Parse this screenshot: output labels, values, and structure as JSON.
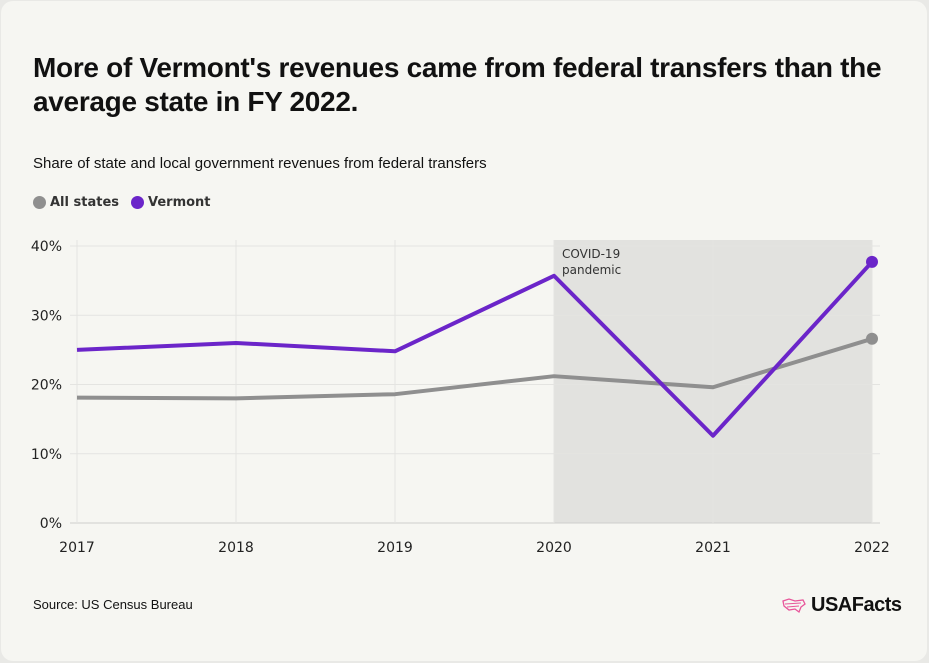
{
  "title": "More of Vermont's revenues came from federal transfers than the average state in FY 2022.",
  "subtitle": "Share of state and local government revenues from federal transfers",
  "source": "Source: US Census Bureau",
  "logo": "USAFacts",
  "chart_data": {
    "type": "line",
    "x": [
      "2017",
      "2018",
      "2019",
      "2020",
      "2021",
      "2022"
    ],
    "ylim": [
      0,
      40
    ],
    "yticks": [
      "0%",
      "10%",
      "20%",
      "30%",
      "40%"
    ],
    "grid": true,
    "legend_position": "top-left",
    "series": [
      {
        "name": "All states",
        "color": "#8f8f8f",
        "values": [
          18.1,
          18.0,
          18.6,
          21.2,
          19.6,
          26.6
        ]
      },
      {
        "name": "Vermont",
        "color": "#6b25c9",
        "values": [
          25.0,
          26.0,
          24.8,
          35.7,
          12.6,
          37.7
        ]
      }
    ],
    "annotation": {
      "text_line1": "COVID-19",
      "text_line2": "pandemic",
      "x_start": "2020",
      "x_end": "2022",
      "shade_color": "#e2e2df"
    }
  }
}
